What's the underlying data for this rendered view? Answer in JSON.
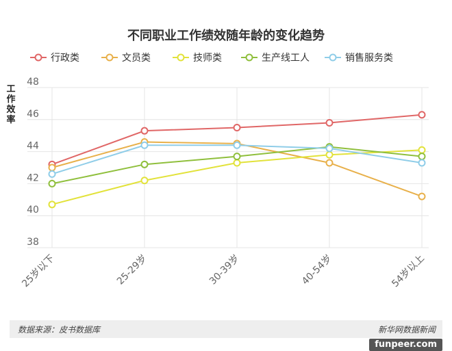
{
  "chart_data": {
    "type": "line",
    "title": "不同职业工作绩效随年龄的变化趋势",
    "ylabel": "工作效率",
    "xlabel": "",
    "categories": [
      "25岁以下",
      "25-29岁",
      "30-39岁",
      "40-54岁",
      "54岁以上"
    ],
    "ylim": [
      38,
      48
    ],
    "yticks": [
      38,
      40,
      42,
      44,
      46,
      48
    ],
    "grid": true,
    "legend": "top",
    "series": [
      {
        "name": "行政类",
        "color": "#e06666",
        "values": [
          43.2,
          45.3,
          45.5,
          45.8,
          46.3
        ]
      },
      {
        "name": "文员类",
        "color": "#e8b04a",
        "values": [
          43.0,
          44.6,
          44.5,
          43.3,
          41.2
        ]
      },
      {
        "name": "技师类",
        "color": "#e2e23a",
        "values": [
          40.7,
          42.2,
          43.3,
          43.8,
          44.1
        ]
      },
      {
        "name": "生产线工人",
        "color": "#8fbf3c",
        "values": [
          42.0,
          43.2,
          43.7,
          44.3,
          43.7
        ]
      },
      {
        "name": "销售服务类",
        "color": "#8fcde8",
        "values": [
          42.6,
          44.4,
          44.4,
          44.2,
          43.3
        ]
      }
    ]
  },
  "footer": {
    "source": "数据来源：皮书数据库",
    "brand": "新华网数据新闻"
  },
  "watermark": "funpeer.com"
}
